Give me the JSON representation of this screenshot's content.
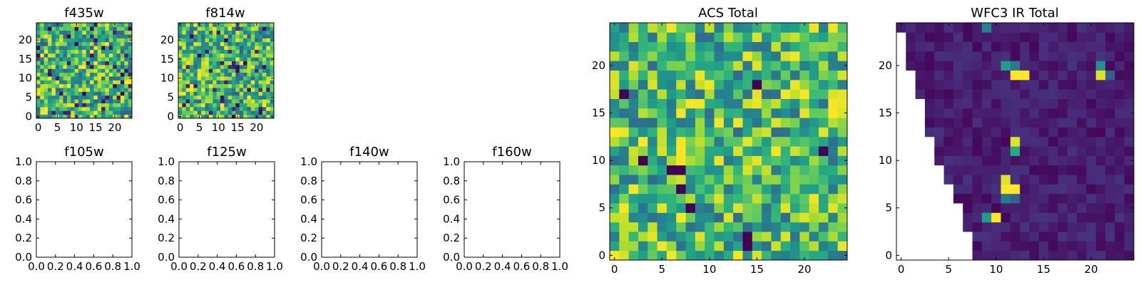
{
  "chart_data": [
    {
      "type": "heatmap",
      "title": "f435w",
      "grid_size": 25,
      "xlim": [
        0,
        24
      ],
      "ylim": [
        0,
        24
      ],
      "xticks": [
        "0",
        "5",
        "10",
        "15",
        "20"
      ],
      "yticks": [
        "0",
        "5",
        "10",
        "15",
        "20"
      ],
      "colormap": "viridis",
      "data_kind": "noise",
      "value_range": [
        0,
        1
      ]
    },
    {
      "type": "heatmap",
      "title": "f814w",
      "grid_size": 25,
      "xlim": [
        0,
        24
      ],
      "ylim": [
        0,
        24
      ],
      "xticks": [
        "0",
        "5",
        "10",
        "15",
        "20"
      ],
      "yticks": [
        "0",
        "5",
        "10",
        "15",
        "20"
      ],
      "colormap": "viridis",
      "data_kind": "noise",
      "value_range": [
        0,
        1
      ]
    },
    {
      "type": "heatmap",
      "title": "f105w",
      "empty": true,
      "xlim": [
        0,
        1
      ],
      "ylim": [
        0,
        1
      ],
      "xticks": [
        "0.0",
        "0.2",
        "0.4",
        "0.6",
        "0.8",
        "1.0"
      ],
      "yticks": [
        "0.0",
        "0.2",
        "0.4",
        "0.6",
        "0.8",
        "1.0"
      ]
    },
    {
      "type": "heatmap",
      "title": "f125w",
      "empty": true,
      "xlim": [
        0,
        1
      ],
      "ylim": [
        0,
        1
      ],
      "xticks": [
        "0.0",
        "0.2",
        "0.4",
        "0.6",
        "0.8",
        "1.0"
      ],
      "yticks": [
        "0.0",
        "0.2",
        "0.4",
        "0.6",
        "0.8",
        "1.0"
      ]
    },
    {
      "type": "heatmap",
      "title": "f140w",
      "empty": true,
      "xlim": [
        0,
        1
      ],
      "ylim": [
        0,
        1
      ],
      "xticks": [
        "0.0",
        "0.2",
        "0.4",
        "0.6",
        "0.8",
        "1.0"
      ],
      "yticks": [
        "0.0",
        "0.2",
        "0.4",
        "0.6",
        "0.8",
        "1.0"
      ]
    },
    {
      "type": "heatmap",
      "title": "f160w",
      "empty": true,
      "xlim": [
        0,
        1
      ],
      "ylim": [
        0,
        1
      ],
      "xticks": [
        "0.0",
        "0.2",
        "0.4",
        "0.6",
        "0.8",
        "1.0"
      ],
      "yticks": [
        "0.0",
        "0.2",
        "0.4",
        "0.6",
        "0.8",
        "1.0"
      ]
    },
    {
      "type": "heatmap",
      "title": "ACS Total",
      "grid_size": 25,
      "xlim": [
        -0.5,
        24.5
      ],
      "ylim": [
        -0.5,
        24.5
      ],
      "xticks": [
        "0",
        "5",
        "10",
        "15",
        "20"
      ],
      "yticks": [
        "0",
        "5",
        "10",
        "15",
        "20"
      ],
      "colormap": "viridis",
      "data_kind": "noise",
      "value_range": [
        0,
        1
      ],
      "dark_cells": [
        [
          1,
          17
        ],
        [
          15,
          18
        ],
        [
          7,
          7
        ],
        [
          8,
          5
        ],
        [
          14,
          1
        ],
        [
          14,
          2
        ],
        [
          22,
          11
        ],
        [
          3,
          10
        ],
        [
          6,
          9
        ],
        [
          7,
          9
        ]
      ]
    },
    {
      "type": "heatmap",
      "title": "WFC3 IR Total",
      "grid_size": 25,
      "xlim": [
        -0.5,
        24.5
      ],
      "ylim": [
        -0.5,
        24.5
      ],
      "xticks": [
        "0",
        "5",
        "10",
        "15",
        "20"
      ],
      "yticks": [
        "0",
        "5",
        "10",
        "15",
        "20"
      ],
      "colormap": "viridis",
      "data_kind": "sparse",
      "value_range": [
        0,
        1
      ],
      "masked_edge_x_by_row": [
        8,
        8,
        8,
        7,
        7,
        7,
        6,
        6,
        5,
        5,
        4,
        4,
        4,
        3,
        3,
        3,
        3,
        2,
        2,
        2,
        1,
        1,
        1,
        1,
        0
      ],
      "bright_cells": [
        [
          11,
          20,
          0.55
        ],
        [
          12,
          19,
          1.0
        ],
        [
          13,
          19,
          1.0
        ],
        [
          12,
          20,
          0.4
        ],
        [
          21,
          20,
          0.5
        ],
        [
          21,
          19,
          0.95
        ],
        [
          22,
          19,
          0.3
        ],
        [
          12,
          12,
          0.95
        ],
        [
          12,
          11,
          0.6
        ],
        [
          11,
          8,
          0.95
        ],
        [
          11,
          7,
          1.0
        ],
        [
          12,
          7,
          1.0
        ],
        [
          11,
          6,
          0.4
        ],
        [
          12,
          6,
          0.3
        ],
        [
          9,
          4,
          0.55
        ],
        [
          10,
          4,
          1.0
        ],
        [
          9,
          24,
          0.45
        ]
      ]
    }
  ]
}
